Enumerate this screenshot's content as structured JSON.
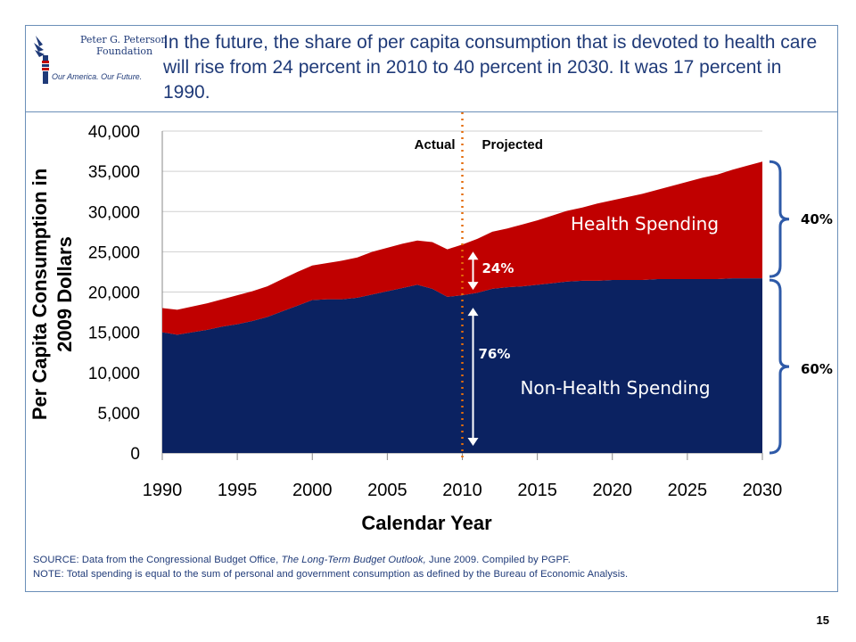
{
  "slide": {
    "headline": "In the future, the share of per capita consumption that is devoted to health care will rise from 24 percent in 2010 to 40 percent in 2030. It was 17 percent in 1990.",
    "page_number": "15",
    "logo": {
      "line1": "Peter G. Peterson",
      "line2": "Foundation",
      "tagline": "Our America. Our Future."
    },
    "source_prefix": "SOURCE: Data from the Congressional Budget Office, ",
    "source_title": "The Long-Term Budget Outlook,",
    "source_suffix": " June 2009. Compiled by PGPF.",
    "note": "NOTE: Total spending is equal to the sum of personal and government consumption as defined by the Bureau of Economic Analysis."
  },
  "colors": {
    "health": "#c00000",
    "non_health": "#0b2261",
    "divider": "#e46c0a",
    "text_blue": "#1f3a78",
    "bracket": "#2e5aa8"
  },
  "chart_data": {
    "type": "area",
    "xlabel": "Calendar Year",
    "ylabel": "Per Capita Consumption in 2009 Dollars",
    "xlim": [
      1990,
      2030
    ],
    "ylim": [
      0,
      40000
    ],
    "x_ticks": [
      "1990",
      "1995",
      "2000",
      "2005",
      "2010",
      "2015",
      "2020",
      "2025",
      "2030"
    ],
    "y_ticks": [
      "0",
      "5,000",
      "10,000",
      "15,000",
      "20,000",
      "25,000",
      "30,000",
      "35,000",
      "40,000"
    ],
    "grid": true,
    "stacked": true,
    "x": [
      1990,
      1991,
      1992,
      1993,
      1994,
      1995,
      1996,
      1997,
      1998,
      1999,
      2000,
      2001,
      2002,
      2003,
      2004,
      2005,
      2006,
      2007,
      2008,
      2009,
      2010,
      2011,
      2012,
      2013,
      2014,
      2015,
      2016,
      2017,
      2018,
      2019,
      2020,
      2021,
      2022,
      2023,
      2024,
      2025,
      2026,
      2027,
      2028,
      2029,
      2030
    ],
    "series": [
      {
        "name": "Non-Health Spending",
        "values": [
          15000,
          14700,
          15000,
          15300,
          15700,
          16000,
          16400,
          16900,
          17600,
          18300,
          19000,
          19100,
          19100,
          19300,
          19700,
          20100,
          20500,
          20900,
          20400,
          19400,
          19600,
          19900,
          20400,
          20600,
          20700,
          20900,
          21100,
          21300,
          21400,
          21400,
          21500,
          21500,
          21500,
          21600,
          21600,
          21600,
          21600,
          21600,
          21700,
          21700,
          21700
        ]
      },
      {
        "name": "Health Spending",
        "values": [
          3000,
          3100,
          3200,
          3300,
          3400,
          3600,
          3700,
          3800,
          4000,
          4200,
          4300,
          4500,
          4800,
          5000,
          5300,
          5400,
          5500,
          5500,
          5800,
          5900,
          6300,
          6700,
          7100,
          7300,
          7700,
          8000,
          8400,
          8800,
          9100,
          9600,
          9900,
          10300,
          10700,
          11100,
          11600,
          12100,
          12600,
          13000,
          13500,
          14000,
          14500
        ]
      }
    ],
    "divider_x": 2010,
    "annotations": {
      "actual": "Actual",
      "projected": "Projected",
      "health_label": "Health Spending",
      "non_health_label": "Non-Health Spending",
      "pct_2010_health": "24%",
      "pct_2010_non_health": "76%",
      "pct_2030_health": "40%",
      "pct_2030_non_health": "60%"
    }
  }
}
